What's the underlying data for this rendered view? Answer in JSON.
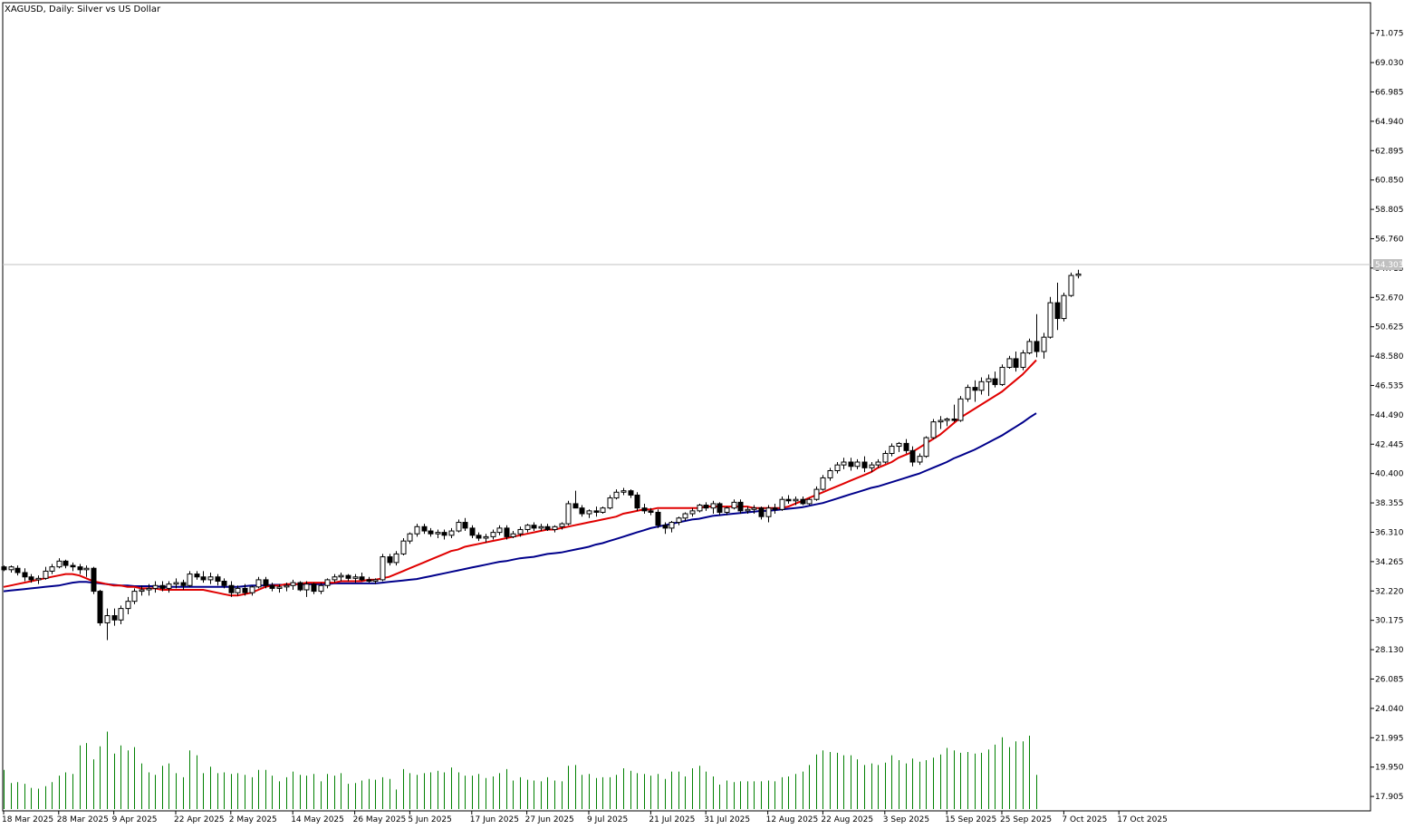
{
  "window": {
    "title": "XAGUSD, Daily:  Silver vs US Dollar"
  },
  "chart_data": {
    "type": "candlestick",
    "symbol": "XAGUSD",
    "timeframe": "Daily",
    "title": "XAGUSD, Daily:  Silver vs US Dollar",
    "ylim": [
      16.9,
      73.2
    ],
    "y_ticks": [
      "71.075",
      "69.030",
      "66.985",
      "64.940",
      "62.895",
      "60.850",
      "58.805",
      "56.760",
      "54.715",
      "52.670",
      "50.625",
      "48.580",
      "46.535",
      "44.490",
      "42.445",
      "40.400",
      "38.355",
      "36.310",
      "34.265",
      "32.220",
      "30.175",
      "28.130",
      "26.085",
      "24.040",
      "21.995",
      "19.950",
      "17.905"
    ],
    "x_labels": [
      "18 Mar 2025",
      "28 Mar 2025",
      "9 Apr 2025",
      "22 Apr 2025",
      "2 May 2025",
      "14 May 2025",
      "26 May 2025",
      "5 Jun 2025",
      "17 Jun 2025",
      "27 Jun 2025",
      "9 Jul 2025",
      "21 Jul 2025",
      "31 Jul 2025",
      "12 Aug 2025",
      "22 Aug 2025",
      "3 Sep 2025",
      "15 Sep 2025",
      "25 Sep 2025",
      "7 Oct 2025",
      "17 Oct 2025"
    ],
    "current_price": "54.303",
    "colors": {
      "bull": "#ffffff",
      "bear": "#000000",
      "wick": "#000000",
      "ma_fast": "#e00000",
      "ma_slow": "#00008b",
      "volume": "#008000",
      "price_line": "#c0c0c0"
    },
    "candles": [
      [
        33.9,
        34.0,
        33.6,
        33.7
      ],
      [
        33.7,
        34.0,
        33.5,
        33.9
      ],
      [
        33.8,
        34.0,
        33.3,
        33.5
      ],
      [
        33.5,
        33.8,
        32.9,
        33.2
      ],
      [
        33.2,
        33.4,
        32.8,
        33.0
      ],
      [
        33.0,
        33.3,
        32.7,
        33.1
      ],
      [
        33.1,
        33.9,
        33.0,
        33.6
      ],
      [
        33.6,
        34.1,
        33.4,
        33.9
      ],
      [
        33.9,
        34.5,
        33.8,
        34.3
      ],
      [
        34.3,
        34.4,
        33.8,
        34.0
      ],
      [
        34.0,
        34.2,
        33.6,
        33.9
      ],
      [
        33.9,
        34.1,
        33.4,
        33.7
      ],
      [
        33.7,
        34.0,
        33.2,
        33.8
      ],
      [
        33.8,
        33.9,
        32.0,
        32.2
      ],
      [
        32.2,
        32.3,
        29.8,
        30.0
      ],
      [
        30.0,
        31.0,
        28.8,
        30.5
      ],
      [
        30.5,
        31.0,
        29.8,
        30.2
      ],
      [
        30.2,
        31.2,
        29.9,
        31.0
      ],
      [
        31.0,
        31.8,
        30.6,
        31.5
      ],
      [
        31.5,
        32.4,
        31.3,
        32.2
      ],
      [
        32.2,
        32.6,
        31.9,
        32.3
      ],
      [
        32.3,
        32.7,
        31.9,
        32.4
      ],
      [
        32.4,
        32.9,
        32.1,
        32.6
      ],
      [
        32.6,
        32.9,
        32.2,
        32.4
      ],
      [
        32.4,
        32.9,
        32.1,
        32.7
      ],
      [
        32.7,
        33.1,
        32.4,
        32.8
      ],
      [
        32.8,
        33.0,
        32.3,
        32.6
      ],
      [
        32.6,
        33.6,
        32.5,
        33.4
      ],
      [
        33.4,
        33.6,
        33.0,
        33.2
      ],
      [
        33.2,
        33.6,
        32.8,
        33.0
      ],
      [
        33.0,
        33.5,
        32.7,
        33.2
      ],
      [
        33.2,
        33.4,
        32.6,
        32.9
      ],
      [
        32.9,
        33.1,
        32.4,
        32.6
      ],
      [
        32.6,
        32.9,
        31.8,
        32.1
      ],
      [
        32.1,
        32.6,
        31.9,
        32.4
      ],
      [
        32.4,
        32.7,
        31.9,
        32.1
      ],
      [
        32.1,
        32.6,
        31.9,
        32.5
      ],
      [
        32.5,
        33.2,
        32.4,
        33.0
      ],
      [
        33.0,
        33.2,
        32.4,
        32.6
      ],
      [
        32.6,
        32.8,
        32.2,
        32.4
      ],
      [
        32.4,
        32.7,
        32.1,
        32.5
      ],
      [
        32.5,
        32.8,
        32.2,
        32.6
      ],
      [
        32.6,
        33.0,
        32.3,
        32.8
      ],
      [
        32.8,
        32.9,
        32.2,
        32.3
      ],
      [
        32.3,
        32.9,
        31.8,
        32.7
      ],
      [
        32.7,
        32.8,
        32.0,
        32.2
      ],
      [
        32.2,
        32.8,
        32.0,
        32.6
      ],
      [
        32.6,
        33.1,
        32.4,
        33.0
      ],
      [
        33.0,
        33.4,
        32.8,
        33.2
      ],
      [
        33.2,
        33.5,
        32.9,
        33.3
      ],
      [
        33.3,
        33.4,
        32.9,
        33.1
      ],
      [
        33.1,
        33.4,
        32.8,
        33.2
      ],
      [
        33.2,
        33.5,
        32.9,
        33.0
      ],
      [
        33.0,
        33.2,
        32.8,
        32.9
      ],
      [
        32.9,
        33.1,
        32.7,
        33.0
      ],
      [
        33.0,
        34.8,
        32.9,
        34.6
      ],
      [
        34.6,
        34.8,
        34.0,
        34.2
      ],
      [
        34.2,
        35.0,
        34.0,
        34.8
      ],
      [
        34.8,
        35.9,
        34.7,
        35.7
      ],
      [
        35.7,
        36.3,
        35.5,
        36.2
      ],
      [
        36.2,
        36.9,
        36.0,
        36.7
      ],
      [
        36.7,
        36.9,
        36.2,
        36.4
      ],
      [
        36.4,
        36.6,
        36.0,
        36.2
      ],
      [
        36.2,
        36.5,
        35.9,
        36.3
      ],
      [
        36.3,
        36.5,
        35.8,
        36.1
      ],
      [
        36.1,
        36.6,
        35.9,
        36.4
      ],
      [
        36.4,
        37.2,
        36.3,
        37.0
      ],
      [
        37.0,
        37.3,
        36.4,
        36.6
      ],
      [
        36.6,
        36.8,
        35.9,
        36.1
      ],
      [
        36.1,
        36.3,
        35.7,
        35.9
      ],
      [
        35.9,
        36.2,
        35.6,
        36.0
      ],
      [
        36.0,
        36.5,
        35.8,
        36.3
      ],
      [
        36.3,
        36.8,
        36.1,
        36.6
      ],
      [
        36.6,
        36.8,
        35.8,
        36.0
      ],
      [
        36.0,
        36.4,
        35.9,
        36.2
      ],
      [
        36.2,
        36.7,
        36.0,
        36.5
      ],
      [
        36.5,
        36.9,
        36.3,
        36.8
      ],
      [
        36.8,
        37.0,
        36.4,
        36.6
      ],
      [
        36.6,
        36.9,
        36.4,
        36.7
      ],
      [
        36.7,
        36.9,
        36.4,
        36.5
      ],
      [
        36.5,
        36.8,
        36.3,
        36.7
      ],
      [
        36.7,
        37.0,
        36.5,
        36.9
      ],
      [
        36.9,
        38.5,
        36.8,
        38.3
      ],
      [
        38.3,
        39.2,
        38.2,
        38.0
      ],
      [
        38.0,
        38.2,
        37.4,
        37.6
      ],
      [
        37.6,
        37.9,
        37.3,
        37.8
      ],
      [
        37.8,
        38.1,
        37.4,
        37.7
      ],
      [
        37.7,
        38.1,
        37.6,
        38.0
      ],
      [
        38.0,
        38.9,
        37.9,
        38.7
      ],
      [
        38.7,
        39.3,
        38.6,
        39.1
      ],
      [
        39.1,
        39.4,
        38.9,
        39.2
      ],
      [
        39.2,
        39.3,
        38.7,
        38.9
      ],
      [
        38.9,
        39.1,
        37.8,
        38.0
      ],
      [
        38.0,
        38.3,
        37.6,
        37.8
      ],
      [
        37.8,
        38.0,
        37.5,
        37.7
      ],
      [
        37.7,
        37.9,
        36.6,
        36.8
      ],
      [
        36.8,
        37.0,
        36.2,
        36.6
      ],
      [
        36.6,
        37.1,
        36.3,
        37.0
      ],
      [
        37.0,
        37.4,
        36.8,
        37.3
      ],
      [
        37.3,
        37.7,
        37.1,
        37.6
      ],
      [
        37.6,
        38.0,
        37.4,
        37.8
      ],
      [
        37.8,
        38.3,
        37.7,
        38.2
      ],
      [
        38.2,
        38.4,
        37.8,
        38.0
      ],
      [
        38.0,
        38.5,
        37.6,
        38.3
      ],
      [
        38.3,
        38.4,
        37.5,
        37.7
      ],
      [
        37.7,
        38.1,
        37.5,
        38.0
      ],
      [
        38.0,
        38.6,
        37.9,
        38.4
      ],
      [
        38.4,
        38.6,
        37.6,
        37.8
      ],
      [
        37.8,
        38.1,
        37.6,
        37.9
      ],
      [
        37.9,
        38.2,
        37.6,
        38.0
      ],
      [
        38.0,
        38.1,
        37.2,
        37.4
      ],
      [
        37.4,
        38.2,
        37.0,
        38.0
      ],
      [
        38.0,
        38.3,
        37.6,
        37.9
      ],
      [
        37.9,
        38.8,
        37.8,
        38.6
      ],
      [
        38.6,
        38.9,
        38.3,
        38.5
      ],
      [
        38.5,
        38.8,
        38.2,
        38.6
      ],
      [
        38.6,
        38.8,
        38.2,
        38.3
      ],
      [
        38.3,
        38.7,
        38.2,
        38.6
      ],
      [
        38.6,
        39.5,
        38.5,
        39.3
      ],
      [
        39.3,
        40.3,
        39.2,
        40.1
      ],
      [
        40.1,
        40.8,
        39.9,
        40.6
      ],
      [
        40.6,
        41.2,
        40.4,
        41.0
      ],
      [
        41.0,
        41.5,
        40.7,
        41.2
      ],
      [
        41.2,
        41.5,
        40.6,
        40.9
      ],
      [
        40.9,
        41.4,
        40.7,
        41.2
      ],
      [
        41.2,
        41.6,
        40.5,
        40.8
      ],
      [
        40.8,
        41.2,
        40.5,
        41.0
      ],
      [
        41.0,
        41.4,
        40.8,
        41.2
      ],
      [
        41.2,
        42.0,
        41.1,
        41.8
      ],
      [
        41.8,
        42.5,
        41.6,
        42.3
      ],
      [
        42.3,
        42.6,
        41.9,
        42.5
      ],
      [
        42.5,
        42.8,
        41.8,
        42.0
      ],
      [
        42.0,
        42.3,
        40.9,
        41.2
      ],
      [
        41.2,
        41.8,
        41.0,
        41.6
      ],
      [
        41.6,
        43.0,
        41.5,
        42.9
      ],
      [
        42.9,
        44.2,
        42.8,
        44.0
      ],
      [
        44.0,
        44.4,
        43.5,
        44.1
      ],
      [
        44.1,
        44.3,
        43.7,
        44.2
      ],
      [
        44.2,
        45.2,
        44.0,
        44.1
      ],
      [
        44.1,
        45.8,
        44.0,
        45.6
      ],
      [
        45.6,
        46.6,
        45.4,
        46.4
      ],
      [
        46.4,
        46.9,
        45.4,
        46.2
      ],
      [
        46.2,
        47.1,
        45.9,
        46.8
      ],
      [
        46.8,
        47.3,
        45.8,
        47.0
      ],
      [
        47.0,
        47.5,
        46.4,
        46.6
      ],
      [
        46.6,
        48.0,
        46.5,
        47.8
      ],
      [
        47.8,
        48.6,
        47.7,
        48.4
      ],
      [
        48.4,
        48.9,
        47.5,
        47.8
      ],
      [
        47.8,
        49.0,
        47.6,
        48.8
      ],
      [
        48.8,
        49.8,
        48.7,
        49.6
      ],
      [
        49.6,
        51.5,
        48.5,
        48.9
      ],
      [
        48.9,
        50.2,
        48.4,
        49.9
      ],
      [
        49.9,
        52.7,
        49.8,
        52.3
      ],
      [
        52.3,
        53.7,
        50.4,
        51.2
      ],
      [
        51.2,
        53.0,
        51.0,
        52.8
      ],
      [
        52.8,
        54.4,
        52.7,
        54.2
      ],
      [
        54.2,
        54.6,
        54.0,
        54.3
      ]
    ],
    "ma_fast": [
      32.5,
      32.6,
      32.7,
      32.8,
      32.9,
      33.0,
      33.1,
      33.2,
      33.3,
      33.4,
      33.4,
      33.3,
      33.1,
      32.9,
      32.8,
      32.7,
      32.6,
      32.6,
      32.5,
      32.5,
      32.4,
      32.4,
      32.4,
      32.3,
      32.3,
      32.3,
      32.3,
      32.3,
      32.3,
      32.3,
      32.2,
      32.1,
      32.0,
      31.9,
      31.9,
      32.0,
      32.1,
      32.3,
      32.5,
      32.6,
      32.6,
      32.7,
      32.7,
      32.7,
      32.8,
      32.8,
      32.8,
      32.8,
      32.8,
      32.9,
      32.9,
      32.9,
      32.9,
      33.0,
      33.0,
      33.1,
      33.2,
      33.4,
      33.6,
      33.8,
      34.0,
      34.2,
      34.4,
      34.6,
      34.8,
      35.0,
      35.1,
      35.3,
      35.4,
      35.5,
      35.6,
      35.7,
      35.8,
      35.9,
      36.0,
      36.1,
      36.2,
      36.3,
      36.4,
      36.5,
      36.5,
      36.6,
      36.7,
      36.8,
      36.9,
      37.0,
      37.1,
      37.2,
      37.3,
      37.4,
      37.6,
      37.7,
      37.8,
      37.9,
      37.9,
      38.0,
      38.0,
      38.0,
      38.0,
      38.0,
      38.0,
      38.0,
      38.1,
      38.1,
      38.1,
      38.1,
      38.1,
      38.1,
      38.1,
      38.0,
      38.0,
      38.0,
      38.0,
      38.0,
      38.1,
      38.3,
      38.5,
      38.7,
      38.9,
      39.1,
      39.3,
      39.5,
      39.7,
      39.9,
      40.1,
      40.3,
      40.5,
      40.8,
      41.0,
      41.2,
      41.5,
      41.7,
      41.9,
      42.2,
      42.5,
      42.8,
      43.1,
      43.5,
      43.9,
      44.3,
      44.6,
      44.9,
      45.2,
      45.5,
      45.8,
      46.1,
      46.5,
      46.9,
      47.3,
      47.8,
      48.3
    ],
    "ma_slow": [
      32.2,
      32.25,
      32.3,
      32.35,
      32.4,
      32.45,
      32.5,
      32.55,
      32.6,
      32.7,
      32.8,
      32.85,
      32.85,
      32.8,
      32.75,
      32.7,
      32.65,
      32.6,
      32.6,
      32.55,
      32.55,
      32.55,
      32.55,
      32.5,
      32.5,
      32.5,
      32.5,
      32.5,
      32.5,
      32.5,
      32.5,
      32.5,
      32.5,
      32.5,
      32.5,
      32.55,
      32.6,
      32.6,
      32.6,
      32.65,
      32.65,
      32.65,
      32.7,
      32.7,
      32.7,
      32.7,
      32.7,
      32.7,
      32.75,
      32.75,
      32.75,
      32.75,
      32.75,
      32.75,
      32.75,
      32.8,
      32.85,
      32.9,
      32.95,
      33.0,
      33.05,
      33.15,
      33.25,
      33.35,
      33.45,
      33.55,
      33.65,
      33.75,
      33.85,
      33.95,
      34.05,
      34.15,
      34.25,
      34.3,
      34.4,
      34.5,
      34.55,
      34.6,
      34.7,
      34.8,
      34.85,
      34.9,
      35.0,
      35.1,
      35.2,
      35.3,
      35.45,
      35.55,
      35.7,
      35.85,
      36.0,
      36.15,
      36.3,
      36.45,
      36.6,
      36.7,
      36.8,
      36.9,
      37.0,
      37.1,
      37.2,
      37.25,
      37.35,
      37.45,
      37.5,
      37.55,
      37.6,
      37.65,
      37.7,
      37.75,
      37.8,
      37.8,
      37.85,
      37.9,
      37.95,
      38.0,
      38.05,
      38.15,
      38.25,
      38.35,
      38.5,
      38.65,
      38.8,
      38.95,
      39.1,
      39.25,
      39.4,
      39.5,
      39.65,
      39.8,
      39.95,
      40.1,
      40.25,
      40.4,
      40.6,
      40.8,
      41.0,
      41.2,
      41.45,
      41.65,
      41.85,
      42.05,
      42.3,
      42.55,
      42.8,
      43.05,
      43.35,
      43.65,
      43.95,
      44.3,
      44.6
    ],
    "volume": [
      0.48,
      0.32,
      0.33,
      0.31,
      0.26,
      0.25,
      0.28,
      0.33,
      0.41,
      0.45,
      0.43,
      0.78,
      0.81,
      0.61,
      0.77,
      0.95,
      0.68,
      0.78,
      0.72,
      0.76,
      0.56,
      0.45,
      0.42,
      0.53,
      0.56,
      0.44,
      0.39,
      0.72,
      0.66,
      0.44,
      0.52,
      0.44,
      0.45,
      0.43,
      0.44,
      0.42,
      0.39,
      0.48,
      0.48,
      0.41,
      0.34,
      0.39,
      0.46,
      0.42,
      0.41,
      0.43,
      0.34,
      0.43,
      0.41,
      0.44,
      0.31,
      0.32,
      0.35,
      0.37,
      0.36,
      0.39,
      0.37,
      0.24,
      0.49,
      0.44,
      0.42,
      0.44,
      0.45,
      0.47,
      0.45,
      0.51,
      0.45,
      0.41,
      0.41,
      0.43,
      0.38,
      0.4,
      0.44,
      0.49,
      0.35,
      0.39,
      0.36,
      0.35,
      0.34,
      0.39,
      0.35,
      0.34,
      0.53,
      0.54,
      0.42,
      0.43,
      0.38,
      0.39,
      0.39,
      0.42,
      0.5,
      0.47,
      0.44,
      0.43,
      0.41,
      0.43,
      0.37,
      0.46,
      0.46,
      0.4,
      0.5,
      0.53,
      0.46,
      0.4,
      0.3,
      0.35,
      0.33,
      0.34,
      0.34,
      0.34,
      0.34,
      0.35,
      0.34,
      0.39,
      0.4,
      0.43,
      0.46,
      0.54,
      0.67,
      0.72,
      0.7,
      0.69,
      0.66,
      0.66,
      0.61,
      0.54,
      0.56,
      0.54,
      0.57,
      0.66,
      0.6,
      0.56,
      0.62,
      0.58,
      0.6,
      0.63,
      0.67,
      0.75,
      0.72,
      0.69,
      0.7,
      0.68,
      0.69,
      0.73,
      0.79,
      0.88,
      0.76,
      0.83,
      0.83,
      0.9,
      0.42
    ]
  }
}
